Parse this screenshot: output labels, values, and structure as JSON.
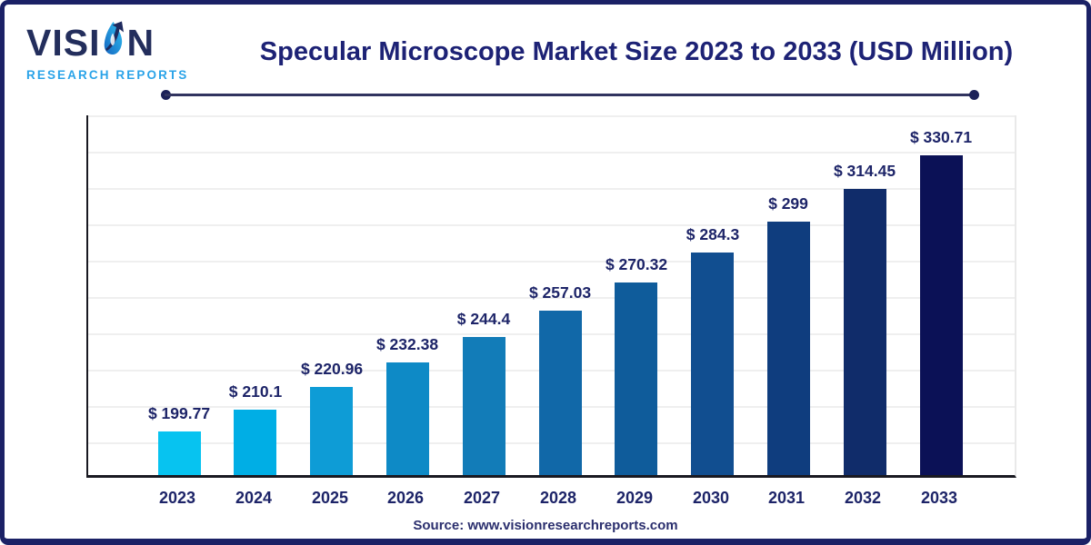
{
  "logo": {
    "brand": "VISION",
    "brand_pre": "VISI",
    "brand_post": "N",
    "subtitle": "RESEARCH REPORTS"
  },
  "header": {
    "title": "Specular Microscope Market Size 2023 to 2033 (USD Million)"
  },
  "source": {
    "label": "Source: www.visionresearchreports.com"
  },
  "colors": {
    "card_border": "#1b2166",
    "title_text": "#1d2275",
    "label_text": "#1d2468",
    "logo_navy": "#232e5c",
    "logo_blue": "#2aa3e8",
    "axis": "#191921",
    "gridline": "#efefef"
  },
  "chart_data": {
    "type": "bar",
    "title": "Specular Microscope Market Size 2023 to 2033 (USD Million)",
    "categories": [
      "2023",
      "2024",
      "2025",
      "2026",
      "2027",
      "2028",
      "2029",
      "2030",
      "2031",
      "2032",
      "2033"
    ],
    "values": [
      199.77,
      210.1,
      220.96,
      232.38,
      244.4,
      257.03,
      270.32,
      284.3,
      299,
      314.45,
      330.71
    ],
    "value_labels": [
      "$ 199.77",
      "$ 210.1",
      "$ 220.96",
      "$ 232.38",
      "$ 244.4",
      "$ 257.03",
      "$ 270.32",
      "$ 284.3",
      "$ 299",
      "$ 314.45",
      "$ 330.71"
    ],
    "bar_colors": [
      "#07C3F0",
      "#00AEE5",
      "#0E9CD6",
      "#0E8AC6",
      "#127CB8",
      "#1168A8",
      "#0F5C9B",
      "#114E90",
      "#0F3D7E",
      "#102C6A",
      "#0B1156"
    ],
    "unit": "USD Million",
    "currency_prefix": "$",
    "xlabel": "",
    "ylabel": "",
    "ylim": [
      179,
      349.5
    ],
    "grid": true,
    "legend": "none"
  }
}
